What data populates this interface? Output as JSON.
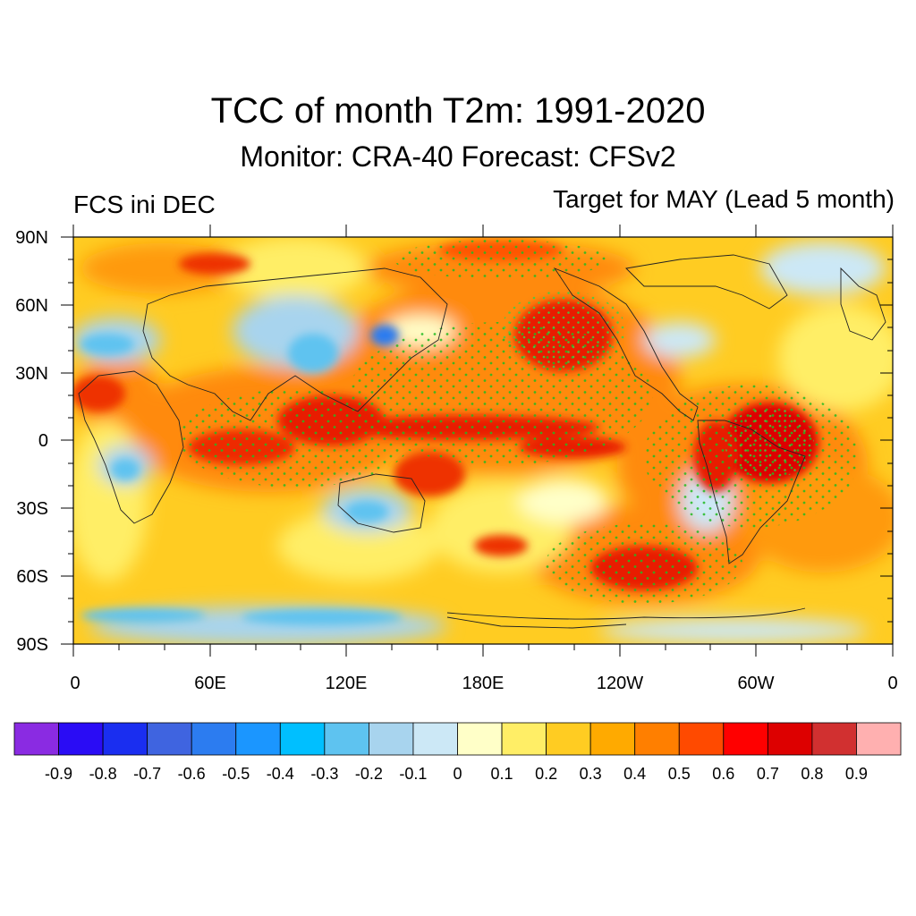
{
  "title": "TCC of month T2m: 1991-2020",
  "subtitle": "Monitor: CRA-40   Forecast: CFSv2",
  "left_label": "FCS ini DEC",
  "right_label": "Target for MAY (Lead 5 month)",
  "lat_labels": [
    "90N",
    "60N",
    "30N",
    "0",
    "30S",
    "60S",
    "90S"
  ],
  "lon_labels": [
    "0",
    "60E",
    "120E",
    "180E",
    "120W",
    "60W",
    "0"
  ],
  "colorbar": {
    "colors": [
      "#8a2be2",
      "#2a0cf5",
      "#1a2ef0",
      "#3f64e0",
      "#2c7cf0",
      "#1b96ff",
      "#00bfff",
      "#5ec3f0",
      "#a8d4ee",
      "#cce8f6",
      "#ffffc8",
      "#ffee66",
      "#ffcc22",
      "#ffaa00",
      "#ff7f00",
      "#ff4a00",
      "#ff0000",
      "#dd0000",
      "#d13030",
      "#ffb0b0"
    ],
    "labels": [
      "-0.9",
      "-0.8",
      "-0.7",
      "-0.6",
      "-0.5",
      "-0.4",
      "-0.3",
      "-0.2",
      "-0.1",
      "0",
      "0.1",
      "0.2",
      "0.3",
      "0.4",
      "0.5",
      "0.6",
      "0.7",
      "0.8",
      "0.9"
    ]
  }
}
